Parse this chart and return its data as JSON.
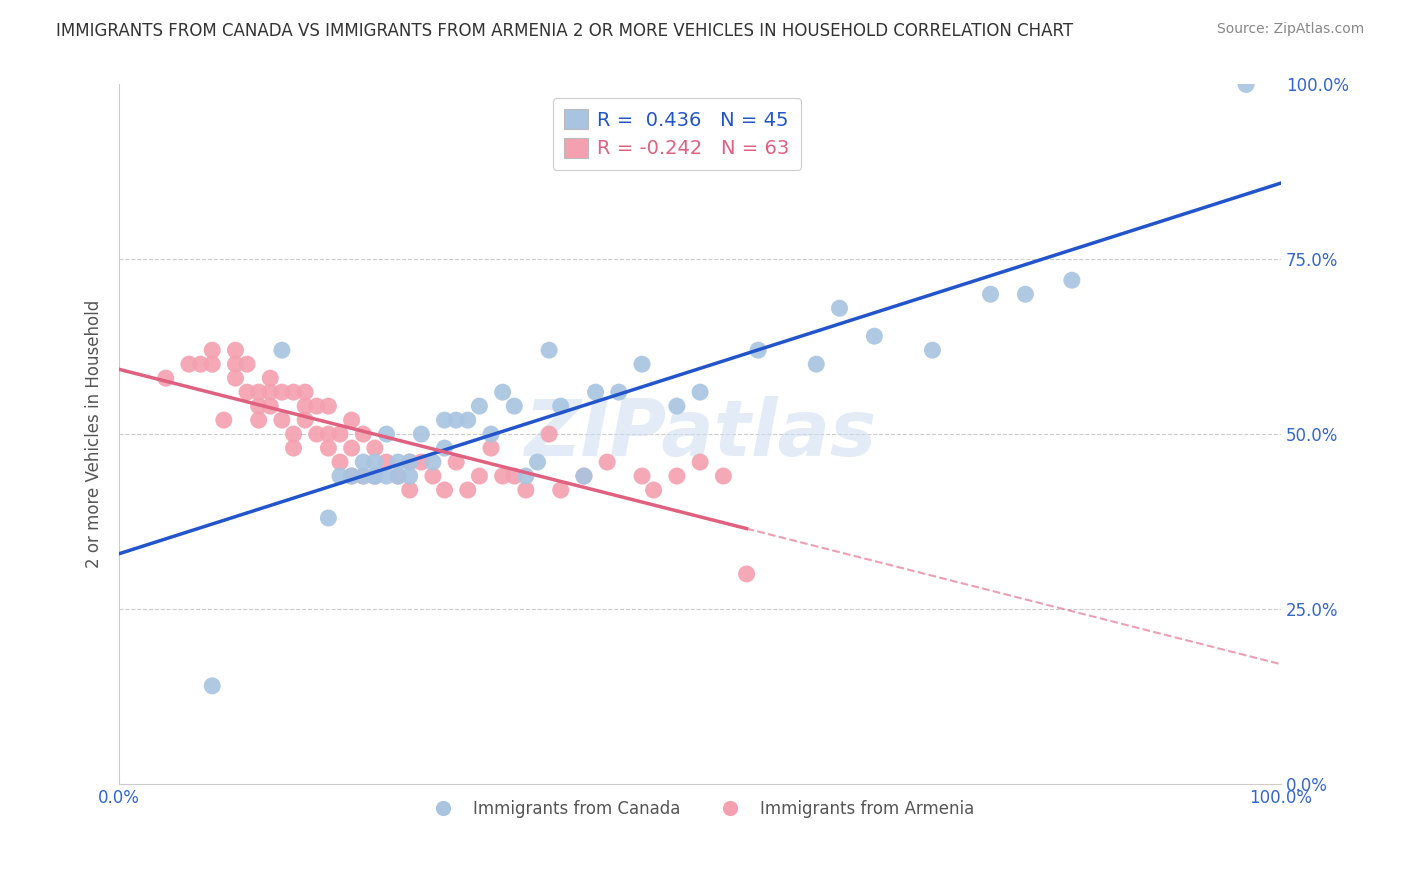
{
  "title": "IMMIGRANTS FROM CANADA VS IMMIGRANTS FROM ARMENIA 2 OR MORE VEHICLES IN HOUSEHOLD CORRELATION CHART",
  "source": "Source: ZipAtlas.com",
  "ylabel": "2 or more Vehicles in Household",
  "xlim": [
    0.0,
    1.0
  ],
  "ylim": [
    0.0,
    1.0
  ],
  "ytick_labels": [
    "0.0%",
    "25.0%",
    "50.0%",
    "75.0%",
    "100.0%"
  ],
  "ytick_positions": [
    0.0,
    0.25,
    0.5,
    0.75,
    1.0
  ],
  "canada_R": 0.436,
  "canada_N": 45,
  "armenia_R": -0.242,
  "armenia_N": 63,
  "canada_color": "#a8c4e0",
  "armenia_color": "#f4a0b0",
  "canada_line_color": "#2255cc",
  "armenia_line_color": "#e06080",
  "background_color": "#ffffff",
  "canada_x": [
    0.08,
    0.14,
    0.18,
    0.19,
    0.2,
    0.21,
    0.21,
    0.22,
    0.22,
    0.22,
    0.23,
    0.23,
    0.24,
    0.24,
    0.25,
    0.25,
    0.26,
    0.27,
    0.28,
    0.28,
    0.29,
    0.3,
    0.31,
    0.32,
    0.33,
    0.34,
    0.35,
    0.36,
    0.37,
    0.38,
    0.4,
    0.41,
    0.43,
    0.45,
    0.48,
    0.5,
    0.55,
    0.6,
    0.62,
    0.65,
    0.7,
    0.75,
    0.78,
    0.82,
    0.97
  ],
  "canada_y": [
    0.14,
    0.62,
    0.38,
    0.44,
    0.44,
    0.44,
    0.46,
    0.44,
    0.46,
    0.44,
    0.44,
    0.5,
    0.44,
    0.46,
    0.46,
    0.44,
    0.5,
    0.46,
    0.48,
    0.52,
    0.52,
    0.52,
    0.54,
    0.5,
    0.56,
    0.54,
    0.44,
    0.46,
    0.62,
    0.54,
    0.44,
    0.56,
    0.56,
    0.6,
    0.54,
    0.56,
    0.62,
    0.6,
    0.68,
    0.64,
    0.62,
    0.7,
    0.7,
    0.72,
    1.0
  ],
  "armenia_x": [
    0.04,
    0.06,
    0.07,
    0.08,
    0.08,
    0.09,
    0.1,
    0.1,
    0.1,
    0.11,
    0.11,
    0.12,
    0.12,
    0.12,
    0.13,
    0.13,
    0.13,
    0.14,
    0.14,
    0.15,
    0.15,
    0.15,
    0.16,
    0.16,
    0.16,
    0.17,
    0.17,
    0.18,
    0.18,
    0.18,
    0.19,
    0.19,
    0.2,
    0.2,
    0.2,
    0.21,
    0.21,
    0.22,
    0.22,
    0.23,
    0.24,
    0.25,
    0.25,
    0.26,
    0.27,
    0.28,
    0.29,
    0.3,
    0.31,
    0.32,
    0.33,
    0.34,
    0.35,
    0.37,
    0.38,
    0.4,
    0.42,
    0.45,
    0.46,
    0.48,
    0.5,
    0.52,
    0.54
  ],
  "armenia_y": [
    0.58,
    0.6,
    0.6,
    0.6,
    0.62,
    0.52,
    0.6,
    0.58,
    0.62,
    0.56,
    0.6,
    0.52,
    0.54,
    0.56,
    0.54,
    0.56,
    0.58,
    0.52,
    0.56,
    0.48,
    0.5,
    0.56,
    0.54,
    0.52,
    0.56,
    0.5,
    0.54,
    0.48,
    0.5,
    0.54,
    0.46,
    0.5,
    0.44,
    0.48,
    0.52,
    0.44,
    0.5,
    0.44,
    0.48,
    0.46,
    0.44,
    0.42,
    0.46,
    0.46,
    0.44,
    0.42,
    0.46,
    0.42,
    0.44,
    0.48,
    0.44,
    0.44,
    0.42,
    0.5,
    0.42,
    0.44,
    0.46,
    0.44,
    0.42,
    0.44,
    0.46,
    0.44,
    0.3
  ],
  "legend_r_canada": "R =  0.436",
  "legend_n_canada": "N = 45",
  "legend_r_armenia": "R = -0.242",
  "legend_n_armenia": "N = 63"
}
